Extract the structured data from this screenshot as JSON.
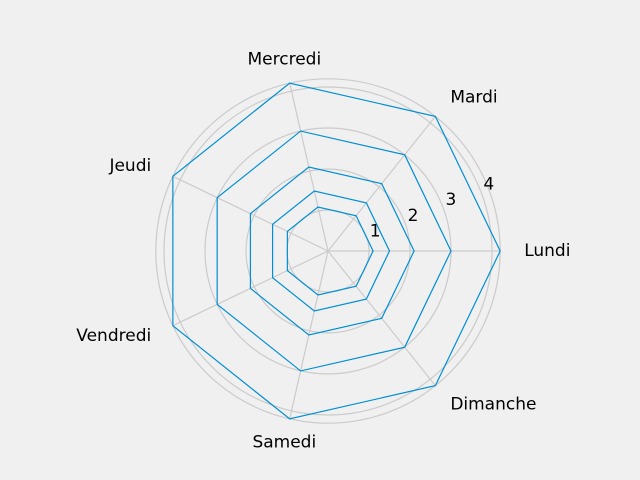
{
  "chart_data": {
    "type": "radar",
    "title": "",
    "categories": [
      "Lundi",
      "Mardi",
      "Mercredi",
      "Jeudi",
      "Vendredi",
      "Samedi",
      "Dimanche"
    ],
    "angles_deg": [
      0,
      51.43,
      102.86,
      154.29,
      205.71,
      257.14,
      308.57
    ],
    "radial_ticks": [
      1,
      2,
      3,
      4
    ],
    "rlim": [
      0,
      4.2
    ],
    "grid": true,
    "line_color": "#008fd5",
    "series": [
      {
        "values": [
          1.1,
          1.1,
          1.1,
          1.1,
          1.1,
          1.1,
          1.1
        ]
      },
      {
        "values": [
          1.5,
          1.5,
          1.5,
          1.5,
          1.5,
          1.5,
          1.5
        ]
      },
      {
        "values": [
          2.1,
          2.1,
          2.1,
          2.1,
          2.1,
          2.1,
          2.1
        ]
      },
      {
        "values": [
          3.0,
          3.0,
          3.0,
          3.0,
          3.0,
          3.0,
          3.0
        ]
      },
      {
        "values": [
          4.2,
          4.2,
          4.2,
          4.2,
          4.2,
          4.2,
          4.2
        ]
      }
    ]
  }
}
